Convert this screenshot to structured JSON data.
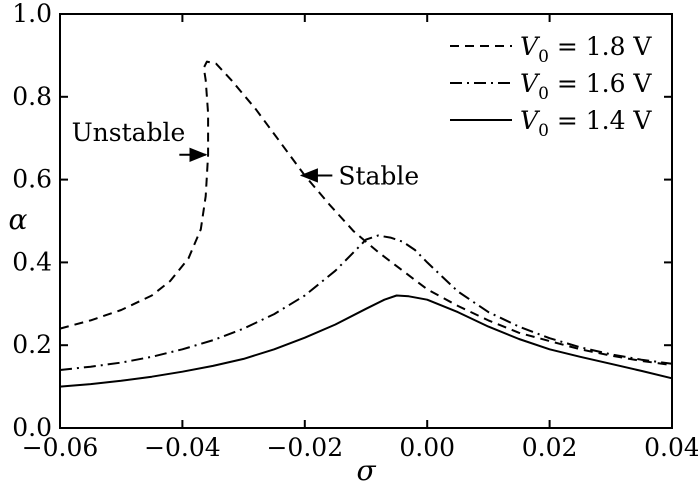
{
  "chart_data": {
    "type": "line",
    "xlabel": "σ",
    "ylabel": "α",
    "xlim": [
      -0.06,
      0.04
    ],
    "ylim": [
      0.0,
      1.0
    ],
    "grid": false,
    "legend_position": "top-right",
    "x_ticks": [
      "−0.06",
      "−0.04",
      "−0.02",
      "0.00",
      "0.02",
      "0.04"
    ],
    "y_ticks": [
      "0.0",
      "0.2",
      "0.4",
      "0.6",
      "0.8",
      "1.0"
    ],
    "series": [
      {
        "name": "V0 = 1.8 V",
        "legend_label": {
          "var": "V",
          "sub": "0",
          "rest": " = 1.8 V"
        },
        "style": "dashed",
        "points": [
          [
            -0.06,
            0.24
          ],
          [
            -0.055,
            0.26
          ],
          [
            -0.05,
            0.285
          ],
          [
            -0.045,
            0.32
          ],
          [
            -0.042,
            0.355
          ],
          [
            -0.039,
            0.41
          ],
          [
            -0.037,
            0.48
          ],
          [
            -0.0362,
            0.56
          ],
          [
            -0.0358,
            0.66
          ],
          [
            -0.0358,
            0.76
          ],
          [
            -0.0362,
            0.84
          ],
          [
            -0.0365,
            0.87
          ],
          [
            -0.036,
            0.885
          ],
          [
            -0.0345,
            0.88
          ],
          [
            -0.032,
            0.84
          ],
          [
            -0.028,
            0.77
          ],
          [
            -0.024,
            0.69
          ],
          [
            -0.02,
            0.61
          ],
          [
            -0.016,
            0.54
          ],
          [
            -0.012,
            0.475
          ],
          [
            -0.008,
            0.425
          ],
          [
            -0.004,
            0.38
          ],
          [
            0.0,
            0.335
          ],
          [
            0.005,
            0.295
          ],
          [
            0.01,
            0.26
          ],
          [
            0.015,
            0.23
          ],
          [
            0.02,
            0.21
          ],
          [
            0.025,
            0.19
          ],
          [
            0.03,
            0.175
          ],
          [
            0.035,
            0.162
          ],
          [
            0.04,
            0.152
          ]
        ]
      },
      {
        "name": "V0 = 1.6 V",
        "legend_label": {
          "var": "V",
          "sub": "0",
          "rest": " = 1.6 V"
        },
        "style": "dashdot",
        "points": [
          [
            -0.06,
            0.14
          ],
          [
            -0.055,
            0.148
          ],
          [
            -0.05,
            0.158
          ],
          [
            -0.045,
            0.172
          ],
          [
            -0.04,
            0.19
          ],
          [
            -0.035,
            0.212
          ],
          [
            -0.03,
            0.24
          ],
          [
            -0.025,
            0.275
          ],
          [
            -0.02,
            0.32
          ],
          [
            -0.015,
            0.38
          ],
          [
            -0.012,
            0.425
          ],
          [
            -0.01,
            0.455
          ],
          [
            -0.008,
            0.465
          ],
          [
            -0.006,
            0.46
          ],
          [
            -0.004,
            0.45
          ],
          [
            -0.002,
            0.43
          ],
          [
            0.0,
            0.4
          ],
          [
            0.005,
            0.33
          ],
          [
            0.01,
            0.28
          ],
          [
            0.015,
            0.245
          ],
          [
            0.02,
            0.217
          ],
          [
            0.025,
            0.195
          ],
          [
            0.03,
            0.178
          ],
          [
            0.035,
            0.165
          ],
          [
            0.04,
            0.155
          ]
        ]
      },
      {
        "name": "V0 = 1.4 V",
        "legend_label": {
          "var": "V",
          "sub": "0",
          "rest": " = 1.4 V"
        },
        "style": "solid",
        "points": [
          [
            -0.06,
            0.1
          ],
          [
            -0.055,
            0.106
          ],
          [
            -0.05,
            0.114
          ],
          [
            -0.045,
            0.124
          ],
          [
            -0.04,
            0.136
          ],
          [
            -0.035,
            0.15
          ],
          [
            -0.03,
            0.167
          ],
          [
            -0.025,
            0.19
          ],
          [
            -0.02,
            0.218
          ],
          [
            -0.015,
            0.25
          ],
          [
            -0.01,
            0.288
          ],
          [
            -0.007,
            0.31
          ],
          [
            -0.005,
            0.32
          ],
          [
            -0.003,
            0.318
          ],
          [
            0.0,
            0.31
          ],
          [
            0.005,
            0.28
          ],
          [
            0.01,
            0.245
          ],
          [
            0.015,
            0.215
          ],
          [
            0.02,
            0.19
          ],
          [
            0.025,
            0.172
          ],
          [
            0.03,
            0.155
          ],
          [
            0.035,
            0.138
          ],
          [
            0.04,
            0.12
          ]
        ]
      }
    ],
    "annotations": [
      {
        "text": "Unstable",
        "arrow_from": [
          -0.0405,
          0.66
        ],
        "arrow_to": [
          -0.0362,
          0.66
        ],
        "text_anchor": "end"
      },
      {
        "text": "Stable",
        "arrow_from": [
          -0.0155,
          0.61
        ],
        "arrow_to": [
          -0.0205,
          0.61
        ],
        "text_anchor": "start"
      }
    ]
  }
}
